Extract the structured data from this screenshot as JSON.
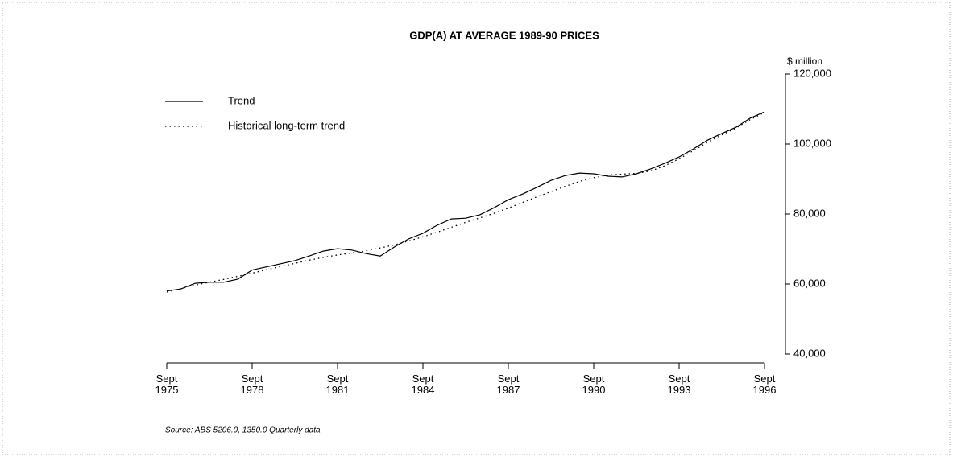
{
  "chart_data": {
    "type": "line",
    "title": "GDP(A) AT AVERAGE 1989-90 PRICES",
    "y_axis_label": "$ million",
    "source": "Source: ABS 5206.0, 1350.0 Quarterly data",
    "x": [
      1975.75,
      1976.25,
      1976.75,
      1977.25,
      1977.75,
      1978.25,
      1978.75,
      1979.25,
      1979.75,
      1980.25,
      1980.75,
      1981.25,
      1981.75,
      1982.25,
      1982.75,
      1983.25,
      1983.75,
      1984.25,
      1984.75,
      1985.25,
      1985.75,
      1986.25,
      1986.75,
      1987.25,
      1987.75,
      1988.25,
      1988.75,
      1989.25,
      1989.75,
      1990.25,
      1990.75,
      1991.25,
      1991.75,
      1992.25,
      1992.75,
      1993.25,
      1993.75,
      1994.25,
      1994.75,
      1995.25,
      1995.75,
      1996.25,
      1996.75
    ],
    "series": [
      {
        "name": "Trend",
        "color": "#000000",
        "line_style": "solid",
        "values": [
          58000,
          58600,
          60200,
          60500,
          60500,
          61400,
          64000,
          64900,
          65800,
          66700,
          68000,
          69400,
          70100,
          69700,
          68700,
          68000,
          70600,
          72900,
          74500,
          76800,
          78600,
          78800,
          79800,
          81800,
          84100,
          85700,
          87600,
          89600,
          91000,
          91700,
          91500,
          90800,
          90600,
          91500,
          92900,
          94500,
          96300,
          98600,
          101100,
          103000,
          104800,
          107400,
          109200
        ]
      },
      {
        "name": "Historical long-term trend",
        "color": "#000000",
        "line_style": "dotted",
        "values": [
          57700,
          58700,
          59700,
          60500,
          61300,
          62200,
          63100,
          64100,
          65000,
          65900,
          66800,
          67600,
          68300,
          68900,
          69500,
          70300,
          71200,
          72300,
          73500,
          74800,
          76200,
          77600,
          78900,
          80200,
          81700,
          83300,
          84900,
          86400,
          87900,
          89300,
          90400,
          91100,
          91400,
          91600,
          92300,
          93800,
          95800,
          98100,
          100500,
          102600,
          104600,
          107000,
          109000
        ]
      }
    ],
    "xlim": [
      1975.75,
      1996.75
    ],
    "xticks": [
      {
        "value": 1975.75,
        "label": "Sept 1975"
      },
      {
        "value": 1978.75,
        "label": "Sept 1978"
      },
      {
        "value": 1981.75,
        "label": "Sept 1981"
      },
      {
        "value": 1984.75,
        "label": "Sept 1984"
      },
      {
        "value": 1987.75,
        "label": "Sept 1987"
      },
      {
        "value": 1990.75,
        "label": "Sept 1990"
      },
      {
        "value": 1993.75,
        "label": "Sept 1993"
      },
      {
        "value": 1996.75,
        "label": "Sept 1996"
      }
    ],
    "ylim": [
      40000,
      120000
    ],
    "yticks": [
      {
        "value": 40000,
        "label": "40,000"
      },
      {
        "value": 60000,
        "label": "60,000"
      },
      {
        "value": 80000,
        "label": "80,000"
      },
      {
        "value": 100000,
        "label": "100,000"
      },
      {
        "value": 120000,
        "label": "120,000"
      }
    ],
    "y_axis_side": "right",
    "legend": "upper left",
    "grid": false
  }
}
